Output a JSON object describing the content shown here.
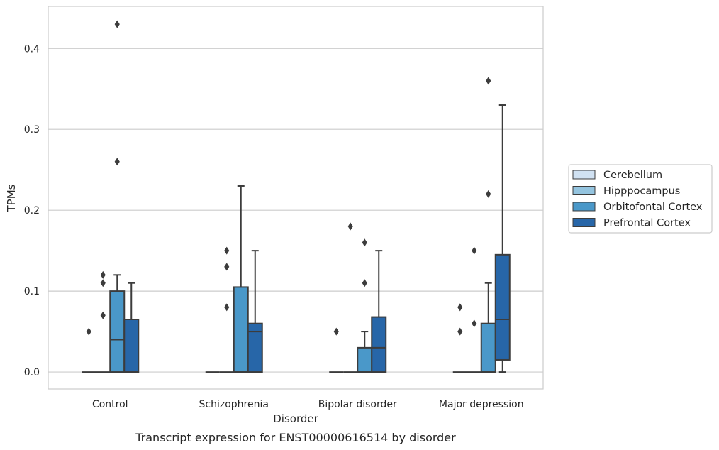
{
  "chart_data": {
    "type": "box",
    "title": "",
    "caption": "Transcript expression for ENST00000616514 by disorder",
    "xlabel": "Disorder",
    "ylabel": "TPMs",
    "ylim": [
      -0.021,
      0.452
    ],
    "yticks": [
      0.0,
      0.1,
      0.2,
      0.3,
      0.4
    ],
    "yticklabels": [
      "0.0",
      "0.1",
      "0.2",
      "0.3",
      "0.4"
    ],
    "grid": "horizontal",
    "legend_position": "right",
    "categories": [
      "Control",
      "Schizophrenia",
      "Bipolar disorder",
      "Major depression"
    ],
    "series": [
      {
        "name": "Cerebellum",
        "color": "#d0e1f2",
        "boxes": [
          {
            "q1": 0,
            "median": 0,
            "q3": 0,
            "whisker_low": 0,
            "whisker_high": 0,
            "outliers": [
              0.05
            ]
          },
          {
            "q1": 0,
            "median": 0,
            "q3": 0,
            "whisker_low": 0,
            "whisker_high": 0,
            "outliers": []
          },
          {
            "q1": 0,
            "median": 0,
            "q3": 0,
            "whisker_low": 0,
            "whisker_high": 0,
            "outliers": [
              0.05
            ]
          },
          {
            "q1": 0,
            "median": 0,
            "q3": 0,
            "whisker_low": 0,
            "whisker_high": 0,
            "outliers": [
              0.05,
              0.08
            ]
          }
        ]
      },
      {
        "name": "Hipppocampus",
        "color": "#94c4df",
        "boxes": [
          {
            "q1": 0,
            "median": 0,
            "q3": 0,
            "whisker_low": 0,
            "whisker_high": 0,
            "outliers": [
              0.07,
              0.11,
              0.12
            ]
          },
          {
            "q1": 0,
            "median": 0,
            "q3": 0,
            "whisker_low": 0,
            "whisker_high": 0,
            "outliers": [
              0.08,
              0.13,
              0.15
            ]
          },
          {
            "q1": 0,
            "median": 0,
            "q3": 0,
            "whisker_low": 0,
            "whisker_high": 0,
            "outliers": [
              0.18
            ]
          },
          {
            "q1": 0,
            "median": 0,
            "q3": 0,
            "whisker_low": 0,
            "whisker_high": 0,
            "outliers": [
              0.06,
              0.15
            ]
          }
        ]
      },
      {
        "name": "Orbitofontal Cortex",
        "color": "#4a98c9",
        "boxes": [
          {
            "q1": 0,
            "median": 0.04,
            "q3": 0.1,
            "whisker_low": 0,
            "whisker_high": 0.12,
            "outliers": [
              0.26,
              0.43
            ]
          },
          {
            "q1": 0,
            "median": 0,
            "q3": 0.105,
            "whisker_low": 0,
            "whisker_high": 0.23,
            "outliers": []
          },
          {
            "q1": 0,
            "median": 0,
            "q3": 0.03,
            "whisker_low": 0,
            "whisker_high": 0.05,
            "outliers": [
              0.11,
              0.16
            ]
          },
          {
            "q1": 0,
            "median": 0,
            "q3": 0.06,
            "whisker_low": 0,
            "whisker_high": 0.11,
            "outliers": [
              0.22,
              0.36
            ]
          }
        ]
      },
      {
        "name": "Prefrontal Cortex",
        "color": "#2766a8",
        "boxes": [
          {
            "q1": 0,
            "median": 0,
            "q3": 0.065,
            "whisker_low": 0,
            "whisker_high": 0.11,
            "outliers": []
          },
          {
            "q1": 0,
            "median": 0.05,
            "q3": 0.06,
            "whisker_low": 0,
            "whisker_high": 0.15,
            "outliers": []
          },
          {
            "q1": 0,
            "median": 0.03,
            "q3": 0.068,
            "whisker_low": 0,
            "whisker_high": 0.15,
            "outliers": []
          },
          {
            "q1": 0.015,
            "median": 0.065,
            "q3": 0.145,
            "whisker_low": 0,
            "whisker_high": 0.33,
            "outliers": []
          }
        ]
      }
    ]
  }
}
